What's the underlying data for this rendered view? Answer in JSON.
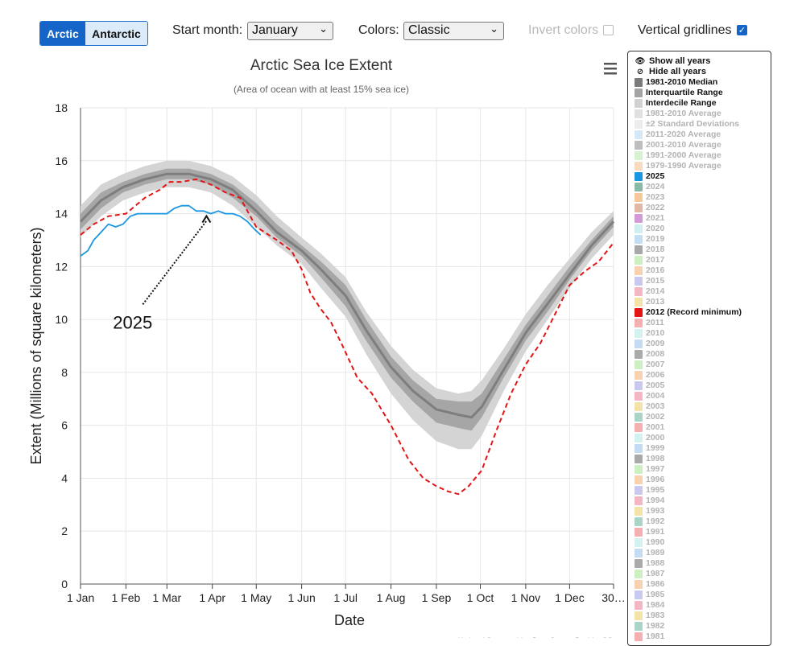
{
  "toolbar": {
    "hemisphere_tabs": [
      {
        "label": "Arctic",
        "active": true
      },
      {
        "label": "Antarctic",
        "active": false
      }
    ],
    "start_month_label": "Start month:",
    "start_month_value": "January",
    "colors_label": "Colors:",
    "colors_value": "Classic",
    "invert_label": "Invert colors",
    "invert_checked": false,
    "gridlines_label": "Vertical gridlines",
    "gridlines_checked": true
  },
  "chart_data": {
    "type": "line",
    "title": "Arctic Sea Ice Extent",
    "subtitle": "(Area of ocean with at least 15% sea ice)",
    "xlabel": "Date",
    "ylabel": "Extent (Millions of square kilometers)",
    "ylim": [
      0,
      18
    ],
    "yticks": [
      0,
      2,
      4,
      6,
      8,
      10,
      12,
      14,
      16,
      18
    ],
    "xlim": [
      1,
      365
    ],
    "xticks": [
      {
        "day": 1,
        "label": "1 Jan"
      },
      {
        "day": 32,
        "label": "1 Feb"
      },
      {
        "day": 60,
        "label": "1 Mar"
      },
      {
        "day": 91,
        "label": "1 Apr"
      },
      {
        "day": 121,
        "label": "1 May"
      },
      {
        "day": 152,
        "label": "1 Jun"
      },
      {
        "day": 182,
        "label": "1 Jul"
      },
      {
        "day": 213,
        "label": "1 Aug"
      },
      {
        "day": 244,
        "label": "1 Sep"
      },
      {
        "day": 274,
        "label": "1 Oct"
      },
      {
        "day": 305,
        "label": "1 Nov"
      },
      {
        "day": 335,
        "label": "1 Dec"
      },
      {
        "day": 365,
        "label": "30…"
      }
    ],
    "vertical_gridlines": true,
    "median_1981_2010": {
      "day": [
        1,
        15,
        30,
        45,
        60,
        75,
        90,
        105,
        121,
        135,
        152,
        165,
        182,
        196,
        213,
        228,
        244,
        259,
        268,
        275,
        290,
        305,
        320,
        335,
        350,
        365
      ],
      "value": [
        13.7,
        14.5,
        15.0,
        15.3,
        15.5,
        15.5,
        15.3,
        14.9,
        14.1,
        13.3,
        12.6,
        11.9,
        10.9,
        9.6,
        8.2,
        7.3,
        6.6,
        6.4,
        6.3,
        6.7,
        8.1,
        9.5,
        10.6,
        11.7,
        12.8,
        13.7
      ]
    },
    "interquartile_range": {
      "day": [
        1,
        15,
        30,
        45,
        60,
        75,
        90,
        105,
        121,
        135,
        152,
        165,
        182,
        196,
        213,
        228,
        244,
        259,
        268,
        275,
        290,
        305,
        320,
        335,
        350,
        365
      ],
      "low": [
        13.4,
        14.2,
        14.8,
        15.1,
        15.3,
        15.3,
        15.1,
        14.6,
        13.9,
        13.1,
        12.4,
        11.6,
        10.5,
        9.2,
        7.8,
        6.9,
        6.1,
        5.9,
        5.8,
        6.3,
        7.8,
        9.2,
        10.3,
        11.5,
        12.6,
        13.5
      ],
      "high": [
        14.0,
        14.8,
        15.2,
        15.5,
        15.7,
        15.7,
        15.5,
        15.1,
        14.4,
        13.6,
        12.8,
        12.2,
        11.3,
        10.0,
        8.6,
        7.7,
        7.0,
        6.9,
        6.9,
        7.2,
        8.5,
        9.8,
        10.9,
        12.0,
        13.0,
        13.9
      ]
    },
    "interdecile_range": {
      "day": [
        1,
        15,
        30,
        45,
        60,
        75,
        90,
        105,
        121,
        135,
        152,
        165,
        182,
        196,
        213,
        228,
        244,
        259,
        268,
        275,
        290,
        305,
        320,
        335,
        350,
        365
      ],
      "low": [
        13.1,
        13.9,
        14.5,
        14.8,
        15.0,
        15.0,
        14.8,
        14.3,
        13.5,
        12.8,
        12.1,
        11.2,
        10.1,
        8.7,
        7.2,
        6.2,
        5.4,
        5.1,
        5.1,
        5.6,
        7.3,
        8.8,
        10.0,
        11.2,
        12.3,
        13.2
      ],
      "high": [
        14.3,
        15.1,
        15.5,
        15.8,
        16.0,
        16.0,
        15.8,
        15.4,
        14.7,
        13.9,
        13.1,
        12.5,
        11.6,
        10.3,
        9.0,
        8.1,
        7.4,
        7.2,
        7.3,
        7.7,
        8.9,
        10.2,
        11.3,
        12.3,
        13.3,
        14.1
      ]
    },
    "series": [
      {
        "name": "2025",
        "color": "#1a96e3",
        "day": [
          1,
          6,
          10,
          15,
          20,
          25,
          30,
          35,
          40,
          45,
          50,
          55,
          60,
          65,
          70,
          75,
          80,
          85,
          90,
          95,
          100,
          105,
          110,
          115,
          120,
          124
        ],
        "value": [
          12.4,
          12.6,
          13.0,
          13.3,
          13.6,
          13.5,
          13.6,
          13.9,
          14.0,
          14.0,
          14.0,
          14.0,
          14.0,
          14.2,
          14.3,
          14.3,
          14.1,
          14.1,
          14.0,
          14.1,
          14.0,
          14.0,
          13.9,
          13.7,
          13.4,
          13.2
        ]
      },
      {
        "name": "2012 (Record minimum)",
        "color": "#e31515",
        "dashed": true,
        "day": [
          1,
          10,
          20,
          32,
          45,
          55,
          62,
          70,
          80,
          90,
          100,
          110,
          121,
          135,
          145,
          152,
          158,
          165,
          172,
          180,
          190,
          200,
          213,
          225,
          235,
          244,
          252,
          259,
          266,
          275,
          285,
          295,
          305,
          315,
          325,
          335,
          345,
          355,
          365
        ],
        "value": [
          13.2,
          13.6,
          13.9,
          14.0,
          14.6,
          14.9,
          15.2,
          15.2,
          15.3,
          15.1,
          14.8,
          14.6,
          13.5,
          13.0,
          12.6,
          11.9,
          11.0,
          10.4,
          9.9,
          9.0,
          7.8,
          7.2,
          6.0,
          4.7,
          4.0,
          3.7,
          3.5,
          3.4,
          3.7,
          4.3,
          5.8,
          7.2,
          8.3,
          9.1,
          10.2,
          11.3,
          11.8,
          12.2,
          12.9
        ]
      }
    ],
    "annotations": [
      {
        "text": "2025",
        "arrow_to_day": 87,
        "arrow_to_value": 14.0,
        "text_at_day": 38,
        "text_at_value": 9.9
      }
    ]
  },
  "legend": {
    "show_all": "Show all years",
    "hide_all": "Hide all years",
    "items": [
      {
        "label": "1981-2010 Median",
        "color": "#7a7a7a",
        "visible": true
      },
      {
        "label": "Interquartile Range",
        "color": "#a3a3a3",
        "visible": true
      },
      {
        "label": "Interdecile Range",
        "color": "#d1d1d1",
        "visible": true
      },
      {
        "label": "1981-2010 Average",
        "color": "#e0e0e0",
        "visible": false
      },
      {
        "label": "±2 Standard Deviations",
        "color": "#ececec",
        "visible": false
      },
      {
        "label": "2011-2020 Average",
        "color": "#d4e8f7",
        "visible": false
      },
      {
        "label": "2001-2010 Average",
        "color": "#bdbdbd",
        "visible": false
      },
      {
        "label": "1991-2000 Average",
        "color": "#d7f2d0",
        "visible": false
      },
      {
        "label": "1979-1990 Average",
        "color": "#f9dcc0",
        "visible": false
      },
      {
        "label": "2025",
        "color": "#1a96e3",
        "visible": true
      },
      {
        "label": "2024",
        "color": "#8ab9a6",
        "visible": false
      },
      {
        "label": "2023",
        "color": "#f6c79a",
        "visible": false
      },
      {
        "label": "2022",
        "color": "#e0b8a4",
        "visible": false
      },
      {
        "label": "2021",
        "color": "#d49ad8",
        "visible": false
      },
      {
        "label": "2020",
        "color": "#cfeef0",
        "visible": false
      },
      {
        "label": "2019",
        "color": "#c3ddf2",
        "visible": false
      },
      {
        "label": "2018",
        "color": "#a8a8a8",
        "visible": false
      },
      {
        "label": "2017",
        "color": "#ccf0c2",
        "visible": false
      },
      {
        "label": "2016",
        "color": "#f8d2b0",
        "visible": false
      },
      {
        "label": "2015",
        "color": "#c9c8ee",
        "visible": false
      },
      {
        "label": "2014",
        "color": "#f3b7c4",
        "visible": false
      },
      {
        "label": "2013",
        "color": "#f4e3a8",
        "visible": false
      },
      {
        "label": "2012 (Record minimum)",
        "color": "#e31515",
        "visible": true
      },
      {
        "label": "2011",
        "color": "#f4b0b0",
        "visible": false
      },
      {
        "label": "2010",
        "color": "#d3f1ef",
        "visible": false
      },
      {
        "label": "2009",
        "color": "#c3dbf3",
        "visible": false
      },
      {
        "label": "2008",
        "color": "#aaaaaa",
        "visible": false
      },
      {
        "label": "2007",
        "color": "#ccf0c2",
        "visible": false
      },
      {
        "label": "2006",
        "color": "#f8d2b0",
        "visible": false
      },
      {
        "label": "2005",
        "color": "#c9c8ee",
        "visible": false
      },
      {
        "label": "2004",
        "color": "#f3b7c4",
        "visible": false
      },
      {
        "label": "2003",
        "color": "#f4e3a8",
        "visible": false
      },
      {
        "label": "2002",
        "color": "#a9d4c8",
        "visible": false
      },
      {
        "label": "2001",
        "color": "#f4b0b0",
        "visible": false
      },
      {
        "label": "2000",
        "color": "#d3f1ef",
        "visible": false
      },
      {
        "label": "1999",
        "color": "#c3dbf3",
        "visible": false
      },
      {
        "label": "1998",
        "color": "#aaaaaa",
        "visible": false
      },
      {
        "label": "1997",
        "color": "#ccf0c2",
        "visible": false
      },
      {
        "label": "1996",
        "color": "#f8d2b0",
        "visible": false
      },
      {
        "label": "1995",
        "color": "#c9c8ee",
        "visible": false
      },
      {
        "label": "1994",
        "color": "#f3b7c4",
        "visible": false
      },
      {
        "label": "1993",
        "color": "#f4e3a8",
        "visible": false
      },
      {
        "label": "1992",
        "color": "#a9d4c8",
        "visible": false
      },
      {
        "label": "1991",
        "color": "#f4b0b0",
        "visible": false
      },
      {
        "label": "1990",
        "color": "#d3f1ef",
        "visible": false
      },
      {
        "label": "1989",
        "color": "#c3dbf3",
        "visible": false
      },
      {
        "label": "1988",
        "color": "#aaaaaa",
        "visible": false
      },
      {
        "label": "1987",
        "color": "#ccf0c2",
        "visible": false
      },
      {
        "label": "1986",
        "color": "#f8d2b0",
        "visible": false
      },
      {
        "label": "1985",
        "color": "#c9c8ee",
        "visible": false
      },
      {
        "label": "1984",
        "color": "#f3b7c4",
        "visible": false
      },
      {
        "label": "1983",
        "color": "#f4e3a8",
        "visible": false
      },
      {
        "label": "1982",
        "color": "#a9d4c8",
        "visible": false
      },
      {
        "label": "1981",
        "color": "#f4b0b0",
        "visible": false
      }
    ]
  },
  "credit": "National Snow and Ice Data Center, Boulder CO"
}
